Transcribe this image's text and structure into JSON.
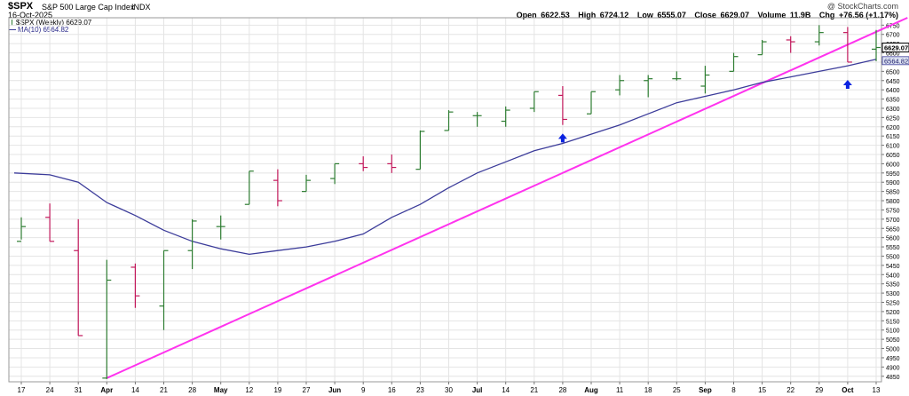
{
  "header": {
    "symbol": "$SPX",
    "name": "S&P 500 Large Cap Index",
    "exchange": "INDX",
    "date": "16-Oct-2025",
    "watermark": "@ StockCharts.com",
    "open_label": "Open",
    "open": "6622.53",
    "high_label": "High",
    "high": "6724.12",
    "low_label": "Low",
    "low": "6555.07",
    "close_label": "Close",
    "close": "6629.07",
    "volume_label": "Volume",
    "volume": "11.9B",
    "chg_label": "Chg",
    "chg": "+76.56 (+1.17%)"
  },
  "legend": {
    "price": "$SPX (Weekly) 6629.07",
    "ma": "MA(10) 6564.82"
  },
  "colors": {
    "up": "#2e7d32",
    "down": "#c2185b",
    "ma": "#3c3c9a",
    "trendline": "#ff33ee",
    "arrow": "#0a22e0",
    "grid": "#e4e4e4",
    "label_box": "#000000",
    "ma_label_bg": "#dde3f2"
  },
  "chart_data": {
    "type": "ohlc",
    "period": "weekly",
    "ylim": [
      4820,
      6790
    ],
    "yticks": [
      4850,
      4900,
      4950,
      5000,
      5050,
      5100,
      5150,
      5200,
      5250,
      5300,
      5350,
      5400,
      5450,
      5500,
      5550,
      5600,
      5650,
      5700,
      5750,
      5800,
      5850,
      5900,
      5950,
      6000,
      6050,
      6100,
      6150,
      6200,
      6250,
      6300,
      6350,
      6400,
      6450,
      6500,
      6550,
      6600,
      6650,
      6700,
      6750
    ],
    "x_labels": [
      {
        "label": "17",
        "bar": 0,
        "bold": false
      },
      {
        "label": "24",
        "bar": 1,
        "bold": false
      },
      {
        "label": "31",
        "bar": 2,
        "bold": false
      },
      {
        "label": "Apr",
        "bar": 3,
        "bold": true
      },
      {
        "label": "14",
        "bar": 4,
        "bold": false
      },
      {
        "label": "21",
        "bar": 5,
        "bold": false
      },
      {
        "label": "28",
        "bar": 6,
        "bold": false
      },
      {
        "label": "May",
        "bar": 7,
        "bold": true
      },
      {
        "label": "12",
        "bar": 8,
        "bold": false
      },
      {
        "label": "19",
        "bar": 9,
        "bold": false
      },
      {
        "label": "27",
        "bar": 10,
        "bold": false
      },
      {
        "label": "Jun",
        "bar": 11,
        "bold": true
      },
      {
        "label": "9",
        "bar": 12,
        "bold": false
      },
      {
        "label": "16",
        "bar": 13,
        "bold": false
      },
      {
        "label": "23",
        "bar": 14,
        "bold": false
      },
      {
        "label": "30",
        "bar": 15,
        "bold": false
      },
      {
        "label": "Jul",
        "bar": 16,
        "bold": true
      },
      {
        "label": "14",
        "bar": 17,
        "bold": false
      },
      {
        "label": "21",
        "bar": 18,
        "bold": false
      },
      {
        "label": "28",
        "bar": 19,
        "bold": false
      },
      {
        "label": "Aug",
        "bar": 20,
        "bold": true
      },
      {
        "label": "11",
        "bar": 21,
        "bold": false
      },
      {
        "label": "18",
        "bar": 22,
        "bold": false
      },
      {
        "label": "25",
        "bar": 23,
        "bold": false
      },
      {
        "label": "Sep",
        "bar": 24,
        "bold": true
      },
      {
        "label": "8",
        "bar": 25,
        "bold": false
      },
      {
        "label": "15",
        "bar": 26,
        "bold": false
      },
      {
        "label": "22",
        "bar": 27,
        "bold": false
      },
      {
        "label": "29",
        "bar": 28,
        "bold": false
      },
      {
        "label": "Oct",
        "bar": 29,
        "bold": true
      },
      {
        "label": "13",
        "bar": 30,
        "bold": false
      }
    ],
    "bars": [
      {
        "o": 5580,
        "h": 5710,
        "l": 5590,
        "c": 5660
      },
      {
        "o": 5710,
        "h": 5785,
        "l": 5580,
        "c": 5580
      },
      {
        "o": 5530,
        "h": 5700,
        "l": 5070,
        "c": 5070
      },
      {
        "o": 4840,
        "h": 5480,
        "l": 4835,
        "c": 5370
      },
      {
        "o": 5440,
        "h": 5460,
        "l": 5220,
        "c": 5285
      },
      {
        "o": 5230,
        "h": 5530,
        "l": 5100,
        "c": 5530
      },
      {
        "o": 5530,
        "h": 5700,
        "l": 5430,
        "c": 5690
      },
      {
        "o": 5660,
        "h": 5720,
        "l": 5590,
        "c": 5660
      },
      {
        "o": 5780,
        "h": 5960,
        "l": 5780,
        "c": 5960
      },
      {
        "o": 5910,
        "h": 5970,
        "l": 5770,
        "c": 5800
      },
      {
        "o": 5850,
        "h": 5940,
        "l": 5850,
        "c": 5910
      },
      {
        "o": 5920,
        "h": 6000,
        "l": 5890,
        "c": 6000
      },
      {
        "o": 6000,
        "h": 6040,
        "l": 5960,
        "c": 5980
      },
      {
        "o": 6000,
        "h": 6050,
        "l": 5950,
        "c": 5980
      },
      {
        "o": 5970,
        "h": 6180,
        "l": 5970,
        "c": 6175
      },
      {
        "o": 6180,
        "h": 6290,
        "l": 6180,
        "c": 6280
      },
      {
        "o": 6260,
        "h": 6280,
        "l": 6200,
        "c": 6260
      },
      {
        "o": 6230,
        "h": 6310,
        "l": 6200,
        "c": 6290
      },
      {
        "o": 6300,
        "h": 6390,
        "l": 6280,
        "c": 6390
      },
      {
        "o": 6370,
        "h": 6420,
        "l": 6210,
        "c": 6240
      },
      {
        "o": 6270,
        "h": 6390,
        "l": 6270,
        "c": 6390
      },
      {
        "o": 6400,
        "h": 6480,
        "l": 6370,
        "c": 6450
      },
      {
        "o": 6450,
        "h": 6480,
        "l": 6360,
        "c": 6460
      },
      {
        "o": 6460,
        "h": 6500,
        "l": 6450,
        "c": 6460
      },
      {
        "o": 6420,
        "h": 6530,
        "l": 6380,
        "c": 6480
      },
      {
        "o": 6500,
        "h": 6600,
        "l": 6500,
        "c": 6580
      },
      {
        "o": 6590,
        "h": 6670,
        "l": 6590,
        "c": 6660
      },
      {
        "o": 6670,
        "h": 6690,
        "l": 6600,
        "c": 6660
      },
      {
        "o": 6660,
        "h": 6750,
        "l": 6640,
        "c": 6710
      },
      {
        "o": 6710,
        "h": 6740,
        "l": 6550,
        "c": 6550
      },
      {
        "o": 6620,
        "h": 6724,
        "l": 6555,
        "c": 6629
      }
    ],
    "ma_series": {
      "name": "MA(10)",
      "values": [
        5950,
        5940,
        5900,
        5790,
        5720,
        5640,
        5580,
        5540,
        5510,
        5530,
        5550,
        5580,
        5620,
        5710,
        5780,
        5870,
        5950,
        6010,
        6070,
        6110,
        6160,
        6210,
        6270,
        6330,
        6365,
        6400,
        6440,
        6470,
        6500,
        6530,
        6565
      ],
      "start_x": -0.25
    },
    "trendline": {
      "x1": 3,
      "y1": 4840,
      "x2": 31.1,
      "y2": 6790
    },
    "arrows": [
      {
        "bar": 19,
        "y": 6135
      },
      {
        "bar": 29,
        "y": 6425
      }
    ],
    "last_price_label": "6629.07",
    "ma_label": "6564.82"
  }
}
